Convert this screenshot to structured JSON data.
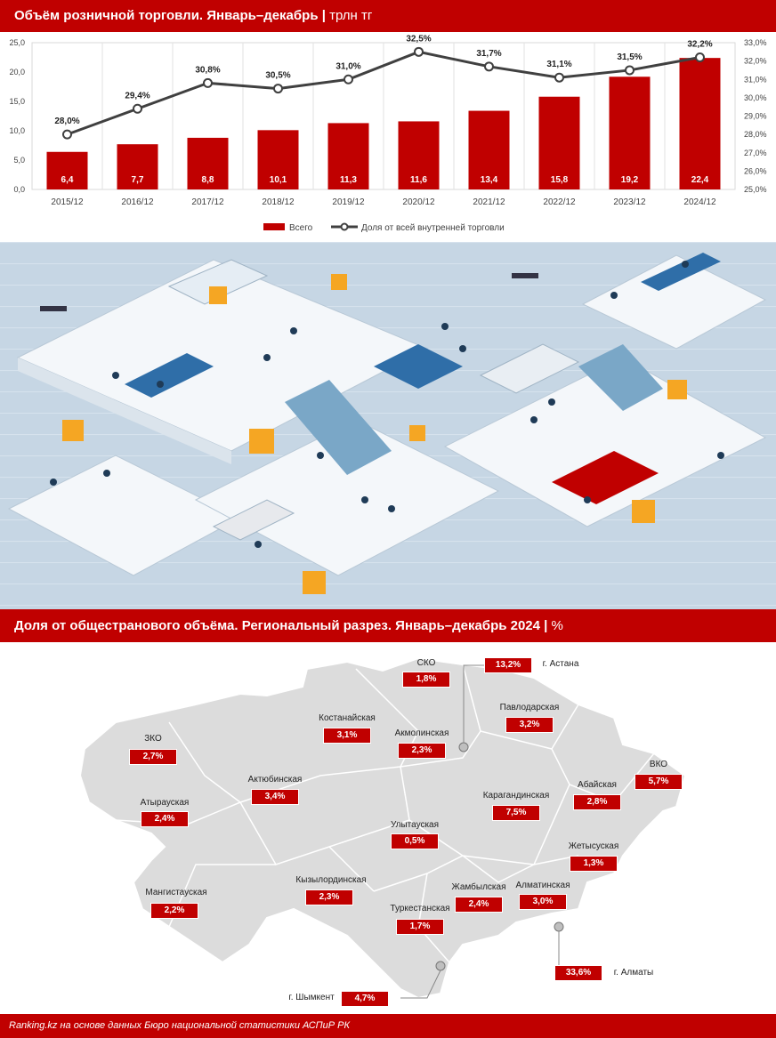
{
  "header1": {
    "title": "Объём розничной торговли. Январь–декабрь",
    "unit": "трлн тг"
  },
  "chart_data": {
    "type": "bar",
    "title": "Объём розничной торговли. Январь–декабрь",
    "categories": [
      "2015/12",
      "2016/12",
      "2017/12",
      "2018/12",
      "2019/12",
      "2020/12",
      "2021/12",
      "2022/12",
      "2023/12",
      "2024/12"
    ],
    "series": [
      {
        "name": "Всего",
        "type": "bar",
        "axis": "left",
        "color": "#c00000",
        "values": [
          6.4,
          7.7,
          8.8,
          10.1,
          11.3,
          11.6,
          13.4,
          15.8,
          19.2,
          22.4
        ],
        "labels": [
          "6,4",
          "7,7",
          "8,8",
          "10,1",
          "11,3",
          "11,6",
          "13,4",
          "15,8",
          "19,2",
          "22,4"
        ]
      },
      {
        "name": "Доля от всей внутренней торговли",
        "type": "line",
        "axis": "right",
        "color": "#404040",
        "values": [
          28.0,
          29.4,
          30.8,
          30.5,
          31.0,
          32.5,
          31.7,
          31.1,
          31.5,
          32.2
        ],
        "labels": [
          "28,0%",
          "29,4%",
          "30,8%",
          "30,5%",
          "31,0%",
          "32,5%",
          "31,7%",
          "31,1%",
          "31,5%",
          "32,2%"
        ]
      }
    ],
    "ylim": [
      0,
      25
    ],
    "yticks": [
      "0,0",
      "5,0",
      "10,0",
      "15,0",
      "20,0",
      "25,0"
    ],
    "y2lim": [
      25,
      33
    ],
    "y2ticks": [
      "25,0%",
      "26,0%",
      "27,0%",
      "28,0%",
      "29,0%",
      "30,0%",
      "31,0%",
      "32,0%",
      "33,0%"
    ],
    "grid": true,
    "legend_position": "bottom"
  },
  "header2": {
    "title": "Доля от общестранового объёма. Региональный разрез. Январь–декабрь 2024",
    "unit": "%"
  },
  "map": {
    "regions": [
      {
        "name": "СКО",
        "value": "1,8%"
      },
      {
        "name": "Костанайская",
        "value": "3,1%"
      },
      {
        "name": "Акмолинская",
        "value": "2,3%"
      },
      {
        "name": "Павлодарская",
        "value": "3,2%"
      },
      {
        "name": "ЗКО",
        "value": "2,7%"
      },
      {
        "name": "Актюбинская",
        "value": "3,4%"
      },
      {
        "name": "ВКО",
        "value": "5,7%"
      },
      {
        "name": "Атырауская",
        "value": "2,4%"
      },
      {
        "name": "Карагандинская",
        "value": "7,5%"
      },
      {
        "name": "Абайская",
        "value": "2,8%"
      },
      {
        "name": "Улытауская",
        "value": "0,5%"
      },
      {
        "name": "Жетысуская",
        "value": "1,3%"
      },
      {
        "name": "Мангистауская",
        "value": "2,2%"
      },
      {
        "name": "Кызылординская",
        "value": "2,3%"
      },
      {
        "name": "Алматинская",
        "value": "3,0%"
      },
      {
        "name": "Жамбылская",
        "value": "2,4%"
      },
      {
        "name": "Туркестанская",
        "value": "1,7%"
      }
    ],
    "cities": [
      {
        "name": "г. Астана",
        "value": "13,2%"
      },
      {
        "name": "г. Алматы",
        "value": "33,6%"
      },
      {
        "name": "г. Шымкент",
        "value": "4,7%"
      }
    ]
  },
  "footer": {
    "source": "Ranking.kz на основе данных Бюро национальной статистики АСПиР РК"
  }
}
